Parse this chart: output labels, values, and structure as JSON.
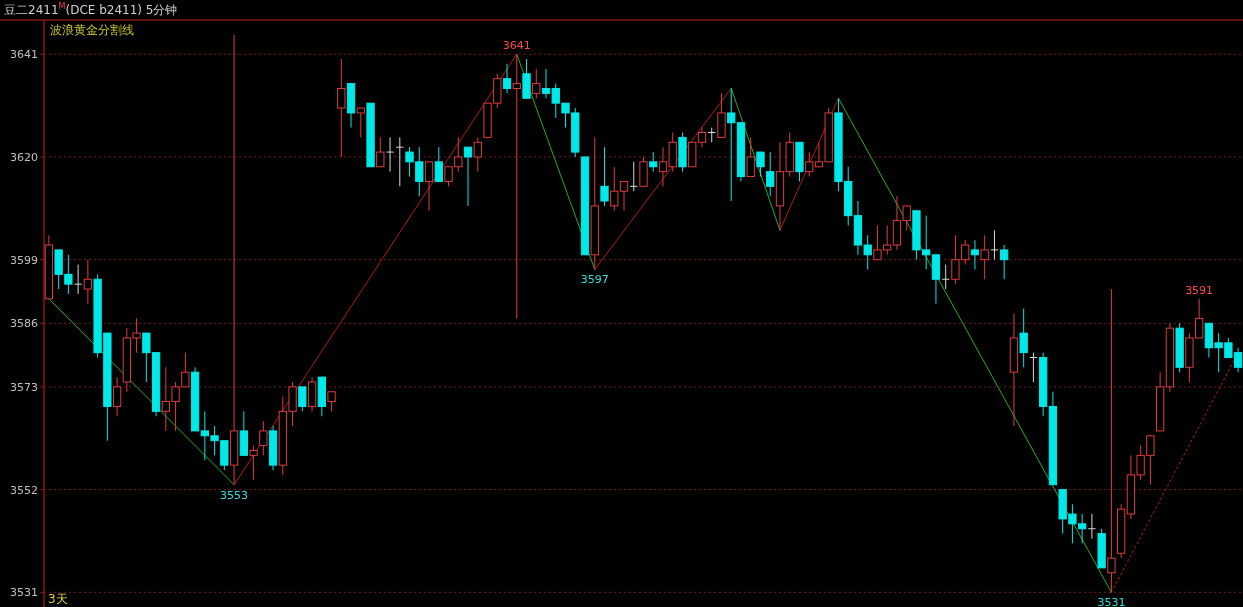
{
  "chart_data": {
    "type": "candlestick",
    "title": "豆二2411$^{M}$(DCE b2411)  5分钟",
    "subtitle": "波浪黄金分割线",
    "annotations": [
      "3天",
      {
        "text": "3553",
        "y": 3553
      },
      {
        "text": "3641",
        "y": 3641
      },
      {
        "text": "3597",
        "y": 3597
      },
      {
        "text": "3591",
        "y": 3591
      },
      {
        "text": "3531",
        "y": 3531
      }
    ],
    "categories": [
      null,
      null,
      null,
      null,
      null,
      null,
      null,
      null,
      null,
      null,
      null,
      null,
      null,
      null,
      null,
      null,
      null,
      null,
      null,
      null,
      null,
      null,
      null,
      null,
      null,
      null,
      null,
      null,
      null,
      null,
      null,
      null,
      null,
      null,
      null,
      null,
      null,
      null,
      null,
      null,
      null,
      null,
      null,
      null,
      null,
      null,
      null,
      null,
      null,
      null,
      null,
      null,
      null,
      null,
      null,
      null,
      null,
      null,
      null,
      null,
      null,
      null,
      null,
      null,
      null,
      null,
      null,
      null,
      null,
      null,
      null,
      null,
      null,
      null,
      null,
      null,
      null,
      null,
      null,
      null,
      null,
      null,
      null,
      null,
      null,
      null,
      null,
      null,
      null,
      null,
      null,
      null,
      null,
      null,
      null,
      null,
      null,
      null,
      null,
      null,
      null,
      null,
      null,
      null,
      null,
      null,
      null,
      null,
      null,
      null,
      null,
      null,
      null,
      null,
      null,
      null,
      null,
      null,
      null,
      null,
      null,
      null,
      null
    ],
    "ohlc": [
      [
        3591,
        3604,
        3591,
        3602
      ],
      [
        3601,
        3601,
        3593,
        3596
      ],
      [
        3596,
        3600,
        3592,
        3594
      ],
      [
        3594,
        3598,
        3592,
        3594
      ],
      [
        3593,
        3599,
        3590,
        3595
      ],
      [
        3595,
        3596,
        3579,
        3580
      ],
      [
        3584,
        3584,
        3562,
        3569
      ],
      [
        3569,
        3575,
        3567,
        3573
      ],
      [
        3574,
        3585,
        3572,
        3583
      ],
      [
        3583,
        3587,
        3580,
        3584
      ],
      [
        3584,
        3584,
        3574,
        3580
      ],
      [
        3580,
        3580,
        3567,
        3568
      ],
      [
        3568,
        3577,
        3564,
        3570
      ],
      [
        3570,
        3574,
        3564,
        3573
      ],
      [
        3573,
        3580,
        3573,
        3576
      ],
      [
        3576,
        3577,
        3564,
        3564
      ],
      [
        3564,
        3568,
        3558,
        3563
      ],
      [
        3563,
        3565,
        3559,
        3562
      ],
      [
        3562,
        3562,
        3556,
        3557
      ],
      [
        3557,
        3645,
        3553,
        3564
      ],
      [
        3564,
        3568,
        3559,
        3559
      ],
      [
        3559,
        3561,
        3554,
        3560
      ],
      [
        3561,
        3566,
        3559,
        3564
      ],
      [
        3564,
        3565,
        3556,
        3557
      ],
      [
        3557,
        3571,
        3555,
        3568
      ],
      [
        3568,
        3574,
        3565,
        3573
      ],
      [
        3573,
        3573,
        3568,
        3569
      ],
      [
        3569,
        3575,
        3568,
        3574
      ],
      [
        3575,
        3575,
        3567,
        3569
      ],
      [
        3570,
        3572,
        3568,
        3572
      ],
      [
        3630,
        3640,
        3620,
        3634
      ],
      [
        3635,
        3635,
        3626,
        3629
      ],
      [
        3629,
        3630,
        3624,
        3630
      ],
      [
        3631,
        3631,
        3618,
        3618
      ],
      [
        3618,
        3624,
        3618,
        3621
      ],
      [
        3621,
        3624,
        3617,
        3621
      ],
      [
        3622,
        3624,
        3614,
        3622
      ],
      [
        3621,
        3622,
        3616,
        3619
      ],
      [
        3619,
        3622,
        3612,
        3615
      ],
      [
        3615,
        3619,
        3609,
        3619
      ],
      [
        3619,
        3622,
        3615,
        3615
      ],
      [
        3615,
        3618,
        3614,
        3618
      ],
      [
        3618,
        3624,
        3617,
        3620
      ],
      [
        3622,
        3622,
        3610,
        3620
      ],
      [
        3620,
        3624,
        3617,
        3623
      ],
      [
        3624,
        3631,
        3624,
        3631
      ],
      [
        3631,
        3637,
        3630,
        3636
      ],
      [
        3636,
        3639,
        3633,
        3634
      ],
      [
        3634,
        3641,
        3587,
        3635
      ],
      [
        3637,
        3640,
        3632,
        3632
      ],
      [
        3633,
        3638,
        3632,
        3635
      ],
      [
        3634,
        3638,
        3632,
        3633
      ],
      [
        3634,
        3635,
        3628,
        3631
      ],
      [
        3631,
        3631,
        3626,
        3629
      ],
      [
        3629,
        3630,
        3620,
        3621
      ],
      [
        3620,
        3620,
        3600,
        3600
      ],
      [
        3600,
        3624,
        3597,
        3610
      ],
      [
        3614,
        3622,
        3610,
        3611
      ],
      [
        3610,
        3618,
        3609,
        3613
      ],
      [
        3613,
        3615,
        3609,
        3615
      ],
      [
        3614,
        3619,
        3613,
        3614
      ],
      [
        3614,
        3620,
        3614,
        3619
      ],
      [
        3619,
        3621,
        3617,
        3618
      ],
      [
        3617,
        3622,
        3614,
        3619
      ],
      [
        3618,
        3625,
        3617,
        3623
      ],
      [
        3624,
        3625,
        3617,
        3618
      ],
      [
        3618,
        3623,
        3618,
        3623
      ],
      [
        3623,
        3626,
        3622,
        3625
      ],
      [
        3625,
        3626,
        3623,
        3625
      ],
      [
        3624,
        3633,
        3624,
        3629
      ],
      [
        3629,
        3634,
        3611,
        3627
      ],
      [
        3627,
        3627,
        3615,
        3616
      ],
      [
        3616,
        3624,
        3616,
        3620
      ],
      [
        3621,
        3621,
        3616,
        3618
      ],
      [
        3617,
        3621,
        3612,
        3614
      ],
      [
        3610,
        3623,
        3605,
        3617
      ],
      [
        3617,
        3625,
        3616,
        3623
      ],
      [
        3623,
        3623,
        3615,
        3617
      ],
      [
        3617,
        3621,
        3616,
        3619
      ],
      [
        3618,
        3623,
        3618,
        3619
      ],
      [
        3619,
        3630,
        3619,
        3629
      ],
      [
        3629,
        3632,
        3613,
        3615
      ],
      [
        3615,
        3618,
        3606,
        3608
      ],
      [
        3608,
        3611,
        3600,
        3602
      ],
      [
        3602,
        3604,
        3597,
        3600
      ],
      [
        3599,
        3606,
        3599,
        3601
      ],
      [
        3601,
        3606,
        3600,
        3602
      ],
      [
        3602,
        3612,
        3601,
        3607
      ],
      [
        3607,
        3610,
        3605,
        3610
      ],
      [
        3609,
        3609,
        3599,
        3601
      ],
      [
        3601,
        3608,
        3597,
        3600
      ],
      [
        3600,
        3600,
        3590,
        3595
      ],
      [
        3595,
        3598,
        3593,
        3595
      ],
      [
        3595,
        3604,
        3594,
        3599
      ],
      [
        3599,
        3603,
        3598,
        3602
      ],
      [
        3601,
        3603,
        3597,
        3600
      ],
      [
        3599,
        3604,
        3595,
        3601
      ],
      [
        3601,
        3605,
        3599,
        3601
      ],
      [
        3601,
        3602,
        3595,
        3599
      ],
      [
        3576,
        3588,
        3565,
        3583
      ],
      [
        3584,
        3589,
        3577,
        3580
      ],
      [
        3579,
        3580,
        3574,
        3579
      ],
      [
        3579,
        3580,
        3567,
        3569
      ],
      [
        3569,
        3572,
        3553,
        3553
      ],
      [
        3552,
        3552,
        3543,
        3546
      ],
      [
        3547,
        3549,
        3541,
        3545
      ],
      [
        3545,
        3547,
        3541,
        3544
      ],
      [
        3544,
        3547,
        3542,
        3544
      ],
      [
        3543,
        3544,
        3536,
        3536
      ],
      [
        3535,
        3593,
        3531,
        3538
      ],
      [
        3539,
        3549,
        3538,
        3548
      ],
      [
        3547,
        3559,
        3546,
        3555
      ],
      [
        3555,
        3561,
        3554,
        3559
      ],
      [
        3559,
        3563,
        3553,
        3563
      ],
      [
        3564,
        3576,
        3564,
        3573
      ],
      [
        3573,
        3586,
        3572,
        3585
      ],
      [
        3585,
        3586,
        3576,
        3577
      ],
      [
        3577,
        3584,
        3574,
        3583
      ],
      [
        3583,
        3591,
        3583,
        3587
      ],
      [
        3586,
        3586,
        3579,
        3581
      ],
      [
        3582,
        3584,
        3576,
        3581
      ],
      [
        3582,
        3583,
        3579,
        3579
      ],
      [
        3580,
        3581,
        3576,
        3577
      ]
    ],
    "colors": [
      "#e03c3c",
      "#00e8e8",
      "#00e8e8",
      "#d8d8d8",
      "#e03c3c",
      "#00e8e8",
      "#00e8e8",
      "#e03c3c",
      "#e03c3c",
      "#e03c3c",
      "#00e8e8",
      "#00e8e8",
      "#e03c3c",
      "#e03c3c",
      "#e03c3c",
      "#00e8e8",
      "#00e8e8",
      "#00e8e8",
      "#00e8e8",
      "#e03c3c",
      "#00e8e8",
      "#e03c3c",
      "#e03c3c",
      "#00e8e8",
      "#e03c3c",
      "#e03c3c",
      "#00e8e8",
      "#e03c3c",
      "#00e8e8",
      "#e03c3c",
      "#e03c3c",
      "#00e8e8",
      "#e03c3c",
      "#00e8e8",
      "#e03c3c",
      "#d8d8d8",
      "#d8d8d8",
      "#00e8e8",
      "#00e8e8",
      "#e03c3c",
      "#00e8e8",
      "#e03c3c",
      "#e03c3c",
      "#00e8e8",
      "#e03c3c",
      "#e03c3c",
      "#e03c3c",
      "#00e8e8",
      "#e03c3c",
      "#00e8e8",
      "#e03c3c",
      "#00e8e8",
      "#00e8e8",
      "#00e8e8",
      "#00e8e8",
      "#00e8e8",
      "#e03c3c",
      "#00e8e8",
      "#e03c3c",
      "#e03c3c",
      "#d8d8d8",
      "#e03c3c",
      "#00e8e8",
      "#e03c3c",
      "#e03c3c",
      "#00e8e8",
      "#e03c3c",
      "#e03c3c",
      "#d8d8d8",
      "#e03c3c",
      "#00e8e8",
      "#00e8e8",
      "#e03c3c",
      "#00e8e8",
      "#00e8e8",
      "#e03c3c",
      "#e03c3c",
      "#00e8e8",
      "#e03c3c",
      "#e03c3c",
      "#e03c3c",
      "#00e8e8",
      "#00e8e8",
      "#00e8e8",
      "#00e8e8",
      "#e03c3c",
      "#e03c3c",
      "#e03c3c",
      "#e03c3c",
      "#00e8e8",
      "#00e8e8",
      "#00e8e8",
      "#d8d8d8",
      "#e03c3c",
      "#e03c3c",
      "#00e8e8",
      "#e03c3c",
      "#d8d8d8",
      "#00e8e8",
      "#e03c3c",
      "#00e8e8",
      "#d8d8d8",
      "#00e8e8",
      "#00e8e8",
      "#00e8e8",
      "#00e8e8",
      "#00e8e8",
      "#d8d8d8",
      "#00e8e8",
      "#e03c3c",
      "#e03c3c",
      "#e03c3c",
      "#e03c3c",
      "#e03c3c",
      "#e03c3c",
      "#e03c3c",
      "#00e8e8",
      "#e03c3c",
      "#e03c3c",
      "#00e8e8",
      "#00e8e8",
      "#00e8e8",
      "#00e8e8"
    ],
    "ylim": [
      3528,
      3648
    ],
    "yticks": [
      3641,
      3620,
      3599,
      3586,
      3573,
      3552,
      3531
    ],
    "grid": "y",
    "series": [
      {
        "type": "line",
        "color": "#20b020",
        "values": [
          3591,
          null,
          null,
          null,
          null,
          null,
          null,
          null,
          null,
          null,
          null,
          null,
          null,
          null,
          null,
          null,
          null,
          null,
          null,
          3553,
          null,
          null,
          null,
          null,
          null,
          null,
          null,
          null,
          null,
          null,
          null,
          null,
          null,
          null,
          null,
          null,
          null,
          null,
          null,
          null,
          null,
          null,
          null,
          null,
          null,
          null,
          null,
          null,
          null,
          null,
          null,
          null,
          null,
          null,
          null,
          null,
          null,
          null,
          null,
          null,
          null,
          null,
          null,
          null,
          null,
          null,
          null,
          null,
          null,
          null,
          null,
          null,
          null,
          null,
          null,
          null,
          null,
          null,
          null,
          null,
          null,
          null,
          null,
          null,
          null,
          null,
          null,
          null,
          null,
          null,
          null,
          null,
          null,
          null,
          null,
          null,
          null,
          null,
          null,
          null,
          null,
          null,
          null,
          null,
          null,
          null,
          null,
          null,
          null,
          null,
          null,
          null,
          null,
          null,
          null,
          null,
          null,
          null,
          null,
          null,
          null,
          null,
          null
        ]
      },
      {
        "type": "line",
        "color": "#b01818",
        "values": [
          null,
          null,
          null,
          null,
          null,
          null,
          null,
          null,
          null,
          null,
          null,
          null,
          null,
          null,
          null,
          null,
          null,
          null,
          null,
          3553,
          null,
          null,
          null,
          null,
          null,
          null,
          null,
          null,
          null,
          null,
          null,
          null,
          null,
          null,
          null,
          null,
          null,
          null,
          null,
          null,
          null,
          null,
          null,
          null,
          null,
          null,
          null,
          null,
          3641,
          null,
          null,
          null,
          null,
          null,
          null,
          null,
          null,
          null,
          null,
          null,
          null,
          null,
          null,
          null,
          null,
          null,
          null,
          null,
          null,
          null,
          null,
          null,
          null,
          null,
          null,
          null,
          null,
          null,
          null,
          null,
          null,
          null,
          null,
          null,
          null,
          null,
          null,
          null,
          null,
          null,
          null,
          null,
          null,
          null,
          null,
          null,
          null,
          null,
          null,
          null,
          null,
          null,
          null,
          null,
          null,
          null,
          null,
          null,
          null,
          null,
          null,
          null,
          null,
          null,
          null,
          null,
          null,
          null,
          null,
          null,
          null,
          null,
          null
        ]
      },
      {
        "type": "line",
        "color": "#20b020",
        "values": [
          null,
          null,
          null,
          null,
          null,
          null,
          null,
          null,
          null,
          null,
          null,
          null,
          null,
          null,
          null,
          null,
          null,
          null,
          null,
          null,
          null,
          null,
          null,
          null,
          null,
          null,
          null,
          null,
          null,
          null,
          null,
          null,
          null,
          null,
          null,
          null,
          null,
          null,
          null,
          null,
          null,
          null,
          null,
          null,
          null,
          null,
          null,
          null,
          3641,
          null,
          null,
          null,
          null,
          null,
          null,
          null,
          3597,
          null,
          null,
          null,
          null,
          null,
          null,
          null,
          null,
          null,
          null,
          null,
          null,
          null,
          null,
          null,
          null,
          null,
          null,
          null,
          null,
          null,
          null,
          null,
          null,
          null,
          null,
          null,
          null,
          null,
          null,
          null,
          null,
          null,
          null,
          null,
          null,
          null,
          null,
          null,
          null,
          null,
          null,
          null,
          null,
          null,
          null,
          null,
          null,
          null,
          null,
          null,
          null,
          null,
          null,
          null,
          null,
          null,
          null,
          null,
          null,
          null,
          null,
          null,
          null,
          null,
          null
        ]
      },
      {
        "type": "line",
        "color": "#b01818",
        "values": [
          null,
          null,
          null,
          null,
          null,
          null,
          null,
          null,
          null,
          null,
          null,
          null,
          null,
          null,
          null,
          null,
          null,
          null,
          null,
          null,
          null,
          null,
          null,
          null,
          null,
          null,
          null,
          null,
          null,
          null,
          null,
          null,
          null,
          null,
          null,
          null,
          null,
          null,
          null,
          null,
          null,
          null,
          null,
          null,
          null,
          null,
          null,
          null,
          null,
          null,
          null,
          null,
          null,
          null,
          null,
          null,
          3597,
          null,
          null,
          null,
          null,
          null,
          null,
          null,
          null,
          null,
          null,
          null,
          null,
          null,
          3634,
          null,
          null,
          null,
          null,
          null,
          null,
          null,
          null,
          null,
          null,
          null,
          null,
          null,
          null,
          null,
          null,
          null,
          null,
          null,
          null,
          null,
          null,
          null,
          null,
          null,
          null,
          null,
          null,
          null,
          null,
          null,
          null,
          null,
          null,
          null,
          null,
          null,
          null,
          null,
          null,
          null,
          null,
          null,
          null,
          null,
          null,
          null,
          null,
          null,
          null,
          null,
          null
        ]
      },
      {
        "type": "line",
        "color": "#20b020",
        "values": [
          null,
          null,
          null,
          null,
          null,
          null,
          null,
          null,
          null,
          null,
          null,
          null,
          null,
          null,
          null,
          null,
          null,
          null,
          null,
          null,
          null,
          null,
          null,
          null,
          null,
          null,
          null,
          null,
          null,
          null,
          null,
          null,
          null,
          null,
          null,
          null,
          null,
          null,
          null,
          null,
          null,
          null,
          null,
          null,
          null,
          null,
          null,
          null,
          null,
          null,
          null,
          null,
          null,
          null,
          null,
          null,
          null,
          null,
          null,
          null,
          null,
          null,
          null,
          null,
          null,
          null,
          null,
          null,
          null,
          null,
          3634,
          null,
          null,
          null,
          null,
          3605,
          null,
          null,
          null,
          null,
          null,
          null,
          null,
          null,
          null,
          null,
          null,
          null,
          null,
          null,
          null,
          null,
          null,
          null,
          null,
          null,
          null,
          null,
          null,
          null,
          null,
          null,
          null,
          null,
          null,
          null,
          null,
          null,
          null,
          null,
          null,
          null,
          null,
          null,
          null,
          null,
          null,
          null,
          null,
          null,
          null,
          null,
          null
        ]
      },
      {
        "type": "line",
        "color": "#b01818",
        "values": [
          null,
          null,
          null,
          null,
          null,
          null,
          null,
          null,
          null,
          null,
          null,
          null,
          null,
          null,
          null,
          null,
          null,
          null,
          null,
          null,
          null,
          null,
          null,
          null,
          null,
          null,
          null,
          null,
          null,
          null,
          null,
          null,
          null,
          null,
          null,
          null,
          null,
          null,
          null,
          null,
          null,
          null,
          null,
          null,
          null,
          null,
          null,
          null,
          null,
          null,
          null,
          null,
          null,
          null,
          null,
          null,
          null,
          null,
          null,
          null,
          null,
          null,
          null,
          null,
          null,
          null,
          null,
          null,
          null,
          null,
          null,
          null,
          null,
          null,
          null,
          3605,
          null,
          null,
          null,
          null,
          null,
          3632,
          null,
          null,
          null,
          null,
          null,
          null,
          null,
          null,
          null,
          null,
          null,
          null,
          null,
          null,
          null,
          null,
          null,
          null,
          null,
          null,
          null,
          null,
          null,
          null,
          null,
          null,
          null,
          null,
          null,
          null,
          null,
          null,
          null,
          null,
          null,
          null,
          null,
          null,
          null,
          null,
          null
        ]
      },
      {
        "type": "line",
        "color": "#20b020",
        "values": [
          null,
          null,
          null,
          null,
          null,
          null,
          null,
          null,
          null,
          null,
          null,
          null,
          null,
          null,
          null,
          null,
          null,
          null,
          null,
          null,
          null,
          null,
          null,
          null,
          null,
          null,
          null,
          null,
          null,
          null,
          null,
          null,
          null,
          null,
          null,
          null,
          null,
          null,
          null,
          null,
          null,
          null,
          null,
          null,
          null,
          null,
          null,
          null,
          null,
          null,
          null,
          null,
          null,
          null,
          null,
          null,
          null,
          null,
          null,
          null,
          null,
          null,
          null,
          null,
          null,
          null,
          null,
          null,
          null,
          null,
          null,
          null,
          null,
          null,
          null,
          null,
          null,
          null,
          null,
          null,
          null,
          3632,
          null,
          null,
          null,
          null,
          null,
          null,
          null,
          null,
          null,
          null,
          null,
          null,
          null,
          null,
          null,
          null,
          null,
          null,
          null,
          null,
          null,
          null,
          null,
          null,
          null,
          null,
          null,
          3531,
          null,
          null,
          null,
          null,
          null,
          null,
          null,
          null,
          null,
          null,
          null,
          null,
          null
        ]
      },
      {
        "type": "line",
        "color": "#b01818",
        "line_style": "dotted",
        "values": [
          null,
          null,
          null,
          null,
          null,
          null,
          null,
          null,
          null,
          null,
          null,
          null,
          null,
          null,
          null,
          null,
          null,
          null,
          null,
          null,
          null,
          null,
          null,
          null,
          null,
          null,
          null,
          null,
          null,
          null,
          null,
          null,
          null,
          null,
          null,
          null,
          null,
          null,
          null,
          null,
          null,
          null,
          null,
          null,
          null,
          null,
          null,
          null,
          null,
          null,
          null,
          null,
          null,
          null,
          null,
          null,
          null,
          null,
          null,
          null,
          null,
          null,
          null,
          null,
          null,
          null,
          null,
          null,
          null,
          null,
          null,
          null,
          null,
          null,
          null,
          null,
          null,
          null,
          null,
          null,
          null,
          null,
          null,
          null,
          null,
          null,
          null,
          null,
          null,
          null,
          null,
          null,
          null,
          null,
          null,
          null,
          null,
          null,
          null,
          null,
          null,
          null,
          null,
          null,
          null,
          null,
          null,
          null,
          null,
          3531,
          null,
          null,
          null,
          null,
          null,
          null,
          null,
          null,
          null,
          null,
          null,
          null,
          3580
        ]
      }
    ]
  }
}
